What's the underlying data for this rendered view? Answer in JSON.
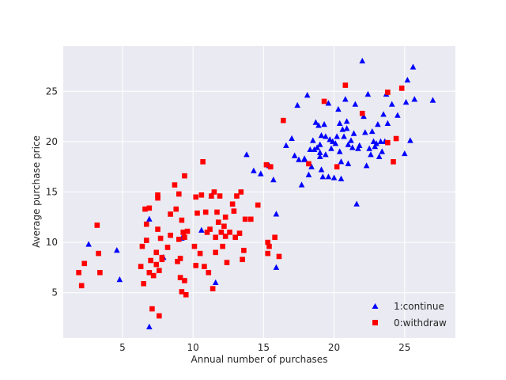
{
  "chart_data": {
    "type": "scatter",
    "title": "",
    "xlabel": "Annual number of purchases",
    "ylabel": "Average purchase price",
    "xlim": [
      0.8,
      28.6
    ],
    "ylim": [
      0.5,
      29.5
    ],
    "xticks": [
      5,
      10,
      15,
      20,
      25
    ],
    "yticks": [
      5,
      10,
      15,
      20,
      25
    ],
    "grid": true,
    "legend_position": "lower-right",
    "colors": {
      "plot_bg": "#EAEAF2",
      "grid": "#FFFFFF",
      "continue": "#0000FF",
      "withdraw": "#FF0000"
    },
    "series": [
      {
        "name": "1:continue",
        "marker": "triangle",
        "color": "#0000FF",
        "points": [
          [
            2.6,
            9.8
          ],
          [
            4.6,
            9.2
          ],
          [
            4.8,
            6.3
          ],
          [
            6.9,
            12.3
          ],
          [
            6.9,
            1.6
          ],
          [
            7.9,
            8.5
          ],
          [
            9.2,
            10.4
          ],
          [
            10.6,
            11.2
          ],
          [
            11.3,
            14.6
          ],
          [
            11.6,
            6.0
          ],
          [
            13.8,
            18.7
          ],
          [
            14.3,
            17.1
          ],
          [
            14.8,
            16.8
          ],
          [
            15.4,
            17.6
          ],
          [
            15.7,
            16.2
          ],
          [
            15.9,
            12.8
          ],
          [
            15.9,
            7.5
          ],
          [
            16.6,
            19.6
          ],
          [
            17.0,
            20.3
          ],
          [
            17.2,
            18.6
          ],
          [
            17.4,
            23.6
          ],
          [
            17.5,
            18.2
          ],
          [
            17.7,
            15.7
          ],
          [
            17.9,
            18.3
          ],
          [
            17.9,
            18.2
          ],
          [
            18.1,
            24.6
          ],
          [
            18.2,
            16.7
          ],
          [
            18.3,
            19.2
          ],
          [
            18.4,
            17.5
          ],
          [
            18.5,
            20.1
          ],
          [
            18.6,
            19.2
          ],
          [
            18.7,
            21.9
          ],
          [
            18.8,
            19.4
          ],
          [
            18.9,
            21.6
          ],
          [
            19.0,
            18.9
          ],
          [
            19.0,
            18.5
          ],
          [
            19.0,
            19.7
          ],
          [
            19.1,
            17.2
          ],
          [
            19.1,
            20.6
          ],
          [
            19.2,
            16.5
          ],
          [
            19.3,
            21.7
          ],
          [
            19.4,
            18.7
          ],
          [
            19.4,
            20.5
          ],
          [
            19.6,
            16.5
          ],
          [
            19.6,
            23.8
          ],
          [
            19.7,
            20.2
          ],
          [
            19.8,
            19.3
          ],
          [
            19.9,
            20.0
          ],
          [
            20.0,
            16.4
          ],
          [
            20.1,
            19.8
          ],
          [
            20.2,
            20.5
          ],
          [
            20.3,
            23.2
          ],
          [
            20.4,
            21.8
          ],
          [
            20.4,
            19.0
          ],
          [
            20.5,
            18.0
          ],
          [
            20.5,
            16.3
          ],
          [
            20.6,
            21.2
          ],
          [
            20.7,
            20.5
          ],
          [
            20.8,
            24.2
          ],
          [
            20.9,
            21.3
          ],
          [
            20.9,
            22.0
          ],
          [
            21.0,
            19.7
          ],
          [
            21.0,
            17.8
          ],
          [
            21.2,
            20.1
          ],
          [
            21.3,
            19.4
          ],
          [
            21.4,
            20.8
          ],
          [
            21.5,
            23.7
          ],
          [
            21.6,
            13.8
          ],
          [
            21.7,
            19.3
          ],
          [
            21.8,
            19.6
          ],
          [
            22.0,
            28.0
          ],
          [
            22.1,
            22.5
          ],
          [
            22.2,
            20.9
          ],
          [
            22.3,
            17.6
          ],
          [
            22.4,
            24.7
          ],
          [
            22.5,
            19.3
          ],
          [
            22.6,
            18.7
          ],
          [
            22.7,
            21.0
          ],
          [
            22.8,
            20.0
          ],
          [
            22.9,
            19.5
          ],
          [
            23.0,
            19.8
          ],
          [
            23.1,
            21.7
          ],
          [
            23.2,
            18.5
          ],
          [
            23.3,
            20.0
          ],
          [
            23.4,
            19.0
          ],
          [
            23.5,
            22.7
          ],
          [
            23.6,
            20.0
          ],
          [
            23.7,
            24.7
          ],
          [
            23.8,
            21.8
          ],
          [
            24.1,
            23.7
          ],
          [
            24.5,
            22.6
          ],
          [
            25.0,
            18.8
          ],
          [
            25.1,
            23.9
          ],
          [
            25.2,
            26.1
          ],
          [
            25.4,
            20.1
          ],
          [
            25.6,
            27.4
          ],
          [
            25.7,
            24.2
          ],
          [
            27.0,
            24.1
          ]
        ]
      },
      {
        "name": "0:withdraw",
        "marker": "square",
        "color": "#FF0000",
        "points": [
          [
            1.9,
            7.0
          ],
          [
            2.1,
            5.7
          ],
          [
            2.3,
            7.9
          ],
          [
            3.2,
            11.7
          ],
          [
            3.3,
            8.9
          ],
          [
            3.4,
            7.0
          ],
          [
            6.3,
            7.6
          ],
          [
            6.4,
            9.6
          ],
          [
            6.5,
            5.9
          ],
          [
            6.6,
            13.3
          ],
          [
            6.7,
            10.2
          ],
          [
            6.7,
            11.8
          ],
          [
            6.9,
            7.0
          ],
          [
            6.9,
            13.4
          ],
          [
            7.0,
            8.2
          ],
          [
            7.1,
            3.4
          ],
          [
            7.2,
            6.7
          ],
          [
            7.4,
            7.8
          ],
          [
            7.4,
            9.0
          ],
          [
            7.5,
            14.7
          ],
          [
            7.5,
            14.4
          ],
          [
            7.5,
            11.3
          ],
          [
            7.6,
            2.7
          ],
          [
            7.6,
            7.2
          ],
          [
            7.7,
            10.4
          ],
          [
            7.8,
            8.3
          ],
          [
            7.8,
            8.5
          ],
          [
            8.2,
            9.5
          ],
          [
            8.4,
            10.7
          ],
          [
            8.4,
            12.8
          ],
          [
            8.7,
            15.7
          ],
          [
            8.8,
            13.3
          ],
          [
            8.9,
            8.1
          ],
          [
            9.0,
            10.3
          ],
          [
            9.0,
            14.8
          ],
          [
            9.1,
            8.4
          ],
          [
            9.1,
            6.5
          ],
          [
            9.2,
            5.1
          ],
          [
            9.2,
            12.2
          ],
          [
            9.3,
            11.0
          ],
          [
            9.4,
            10.5
          ],
          [
            9.4,
            6.2
          ],
          [
            9.4,
            16.6
          ],
          [
            9.5,
            4.8
          ],
          [
            9.6,
            11.1
          ],
          [
            10.1,
            9.6
          ],
          [
            10.2,
            14.5
          ],
          [
            10.2,
            7.7
          ],
          [
            10.3,
            12.9
          ],
          [
            10.5,
            8.9
          ],
          [
            10.6,
            14.7
          ],
          [
            10.7,
            18.0
          ],
          [
            10.8,
            7.6
          ],
          [
            10.9,
            13.0
          ],
          [
            11.0,
            11.0
          ],
          [
            11.1,
            7.0
          ],
          [
            11.2,
            11.3
          ],
          [
            11.3,
            14.6
          ],
          [
            11.4,
            5.4
          ],
          [
            11.5,
            15.0
          ],
          [
            11.6,
            9.0
          ],
          [
            11.6,
            10.5
          ],
          [
            11.7,
            13.0
          ],
          [
            11.8,
            12.0
          ],
          [
            11.9,
            14.6
          ],
          [
            12.0,
            11.0
          ],
          [
            12.1,
            9.6
          ],
          [
            12.2,
            11.6
          ],
          [
            12.3,
            10.6
          ],
          [
            12.3,
            12.5
          ],
          [
            12.4,
            8.0
          ],
          [
            12.6,
            11.0
          ],
          [
            12.8,
            13.8
          ],
          [
            12.9,
            13.1
          ],
          [
            13.0,
            10.5
          ],
          [
            13.1,
            14.6
          ],
          [
            13.3,
            10.9
          ],
          [
            13.4,
            15.0
          ],
          [
            13.5,
            8.3
          ],
          [
            13.6,
            9.2
          ],
          [
            13.7,
            12.3
          ],
          [
            14.1,
            12.3
          ],
          [
            14.6,
            13.7
          ],
          [
            15.2,
            17.7
          ],
          [
            15.3,
            10.0
          ],
          [
            15.3,
            8.9
          ],
          [
            15.4,
            9.6
          ],
          [
            15.5,
            17.5
          ],
          [
            15.8,
            10.5
          ],
          [
            16.1,
            8.6
          ],
          [
            16.4,
            22.1
          ],
          [
            18.2,
            17.8
          ],
          [
            19.3,
            24.0
          ],
          [
            20.2,
            17.5
          ],
          [
            20.8,
            25.6
          ],
          [
            22.0,
            22.8
          ],
          [
            23.8,
            24.9
          ],
          [
            23.8,
            19.9
          ],
          [
            24.2,
            18.0
          ],
          [
            24.4,
            20.3
          ],
          [
            24.8,
            25.3
          ]
        ]
      }
    ]
  }
}
